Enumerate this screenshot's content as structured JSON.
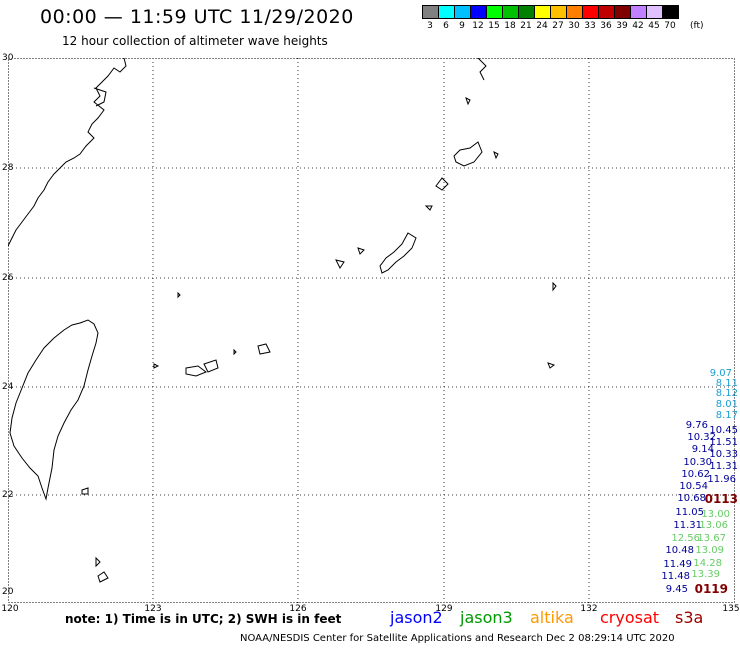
{
  "header": {
    "title": "00:00 — 11:59 UTC 11/29/2020",
    "subtitle": "12 hour collection of altimeter wave heights"
  },
  "scale": {
    "unit": "(ft)",
    "colors": [
      "#808080",
      "#00ffff",
      "#00c0ff",
      "#0000ff",
      "#00ff00",
      "#00c000",
      "#008000",
      "#ffff00",
      "#ffc000",
      "#ff8000",
      "#ff0000",
      "#c00000",
      "#800000",
      "#c080ff",
      "#e0c0ff",
      "#000000"
    ],
    "labels": [
      "3",
      "6",
      "9",
      "12",
      "15",
      "18",
      "21",
      "24",
      "27",
      "30",
      "33",
      "36",
      "39",
      "42",
      "45",
      "70"
    ]
  },
  "axes": {
    "lat_labels": [
      "30",
      "28",
      "26",
      "24",
      "22",
      "20"
    ],
    "lon_labels": [
      "120",
      "123",
      "126",
      "129",
      "132",
      "135"
    ]
  },
  "footer": {
    "note": "note: 1) Time is in UTC; 2) SWH is in feet",
    "credit": "NOAA/NESDIS Center for Satellite Applications and Research   Dec  2 08:29:14 UTC 2020"
  },
  "legend": [
    {
      "name": "jason2",
      "color": "#0000ff"
    },
    {
      "name": "jason3",
      "color": "#009900"
    },
    {
      "name": "altika",
      "color": "#ff9900"
    },
    {
      "name": "cryosat",
      "color": "#ff0000"
    },
    {
      "name": "s3a",
      "color": "#990000"
    }
  ],
  "wave_values": [
    {
      "text": "9.07",
      "color": "#1a9fd0"
    },
    {
      "text": "8.11",
      "color": "#1a9fd0"
    },
    {
      "text": "8.12",
      "color": "#1a9fd0"
    },
    {
      "text": "8.01",
      "color": "#1a9fd0"
    },
    {
      "text": "8.17",
      "color": "#1a9fd0"
    },
    {
      "text": "9.76",
      "color": "#000099"
    },
    {
      "text": "10.45",
      "color": "#000099"
    },
    {
      "text": "10.32",
      "color": "#000099"
    },
    {
      "text": "11.51",
      "color": "#000099"
    },
    {
      "text": "9.14",
      "color": "#000099"
    },
    {
      "text": "10.33",
      "color": "#000099"
    },
    {
      "text": "10.30",
      "color": "#000099"
    },
    {
      "text": "11.31",
      "color": "#000099"
    },
    {
      "text": "10.62",
      "color": "#000099"
    },
    {
      "text": "11.96",
      "color": "#000099"
    },
    {
      "text": "10.54",
      "color": "#000099"
    },
    {
      "text": "10.68",
      "color": "#000099"
    },
    {
      "text": "0113",
      "color": "#800000"
    },
    {
      "text": "11.05",
      "color": "#000099"
    },
    {
      "text": "13.00",
      "color": "#66cc66"
    },
    {
      "text": "11.31",
      "color": "#000099"
    },
    {
      "text": "13.06",
      "color": "#66cc66"
    },
    {
      "text": "12.56",
      "color": "#66cc66"
    },
    {
      "text": "13.67",
      "color": "#66cc66"
    },
    {
      "text": "10.48",
      "color": "#000099"
    },
    {
      "text": "13.09",
      "color": "#66cc66"
    },
    {
      "text": "11.49",
      "color": "#000099"
    },
    {
      "text": "14.28",
      "color": "#66cc66"
    },
    {
      "text": "11.48",
      "color": "#000099"
    },
    {
      "text": "13.39",
      "color": "#66cc66"
    },
    {
      "text": "9.45",
      "color": "#000099"
    },
    {
      "text": "0119",
      "color": "#800000"
    }
  ]
}
